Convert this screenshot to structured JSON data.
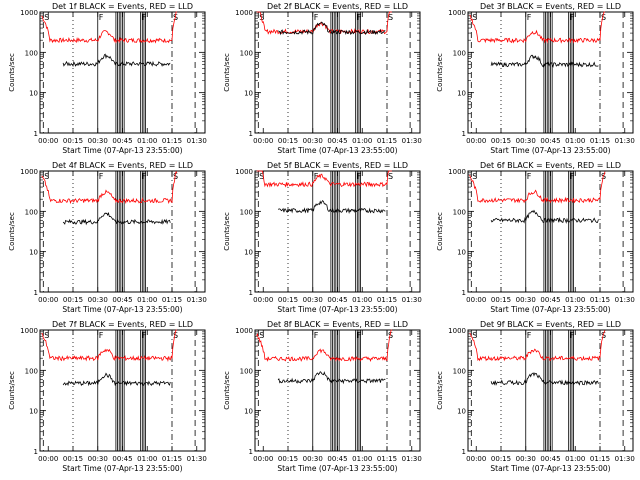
{
  "chart_data": {
    "type": "line",
    "grid": false,
    "legend": "none",
    "colors": {
      "events": "#000000",
      "lld": "#ff0000",
      "frame": "#000000"
    },
    "x_tick_labels": [
      "00:00",
      "00:15",
      "00:30",
      "00:45",
      "01:00",
      "01:15",
      "01:30"
    ],
    "x_ticks_min": [
      5,
      20,
      35,
      50,
      65,
      80,
      95
    ],
    "xlim_min": [
      0,
      100
    ],
    "ylim": [
      1,
      1000
    ],
    "yscale": "log",
    "y_tick_labels": [
      "1",
      "10",
      "100",
      "1000"
    ],
    "y_tick_values": [
      1,
      10,
      100,
      1000
    ],
    "ylabel": "Counts/sec",
    "xlabel": "Start Time (07-Apr-13 23:55:00)",
    "markers": {
      "solid": [
        35,
        46,
        47,
        48,
        49,
        50,
        51,
        61,
        62,
        63,
        64
      ],
      "dashed": [
        2,
        94
      ],
      "dotted": [
        20
      ],
      "dashdot": [
        80
      ],
      "labels": [
        {
          "text": "F",
          "x": 35
        },
        {
          "text": "F",
          "x": 61
        },
        {
          "text": "S",
          "x": 2
        },
        {
          "text": "S",
          "x": 80
        }
      ]
    },
    "panels": [
      {
        "title": "Det 1f BLACK = Events, RED = LLD",
        "events_base": 52,
        "lld_base": 200
      },
      {
        "title": "Det 2f BLACK = Events, RED = LLD",
        "events_base": 320,
        "lld_base": 330
      },
      {
        "title": "Det 3f BLACK = Events, RED = LLD",
        "events_base": 50,
        "lld_base": 200
      },
      {
        "title": "Det 4f BLACK = Events, RED = LLD",
        "events_base": 55,
        "lld_base": 185
      },
      {
        "title": "Det 5f BLACK = Events, RED = LLD",
        "events_base": 105,
        "lld_base": 470
      },
      {
        "title": "Det 6f BLACK = Events, RED = LLD",
        "events_base": 60,
        "lld_base": 190
      },
      {
        "title": "Det 7f BLACK = Events, RED = LLD",
        "events_base": 48,
        "lld_base": 200
      },
      {
        "title": "Det 8f BLACK = Events, RED = LLD",
        "events_base": 55,
        "lld_base": 195
      },
      {
        "title": "Det 9f BLACK = Events, RED = LLD",
        "events_base": 50,
        "lld_base": 200
      }
    ]
  }
}
